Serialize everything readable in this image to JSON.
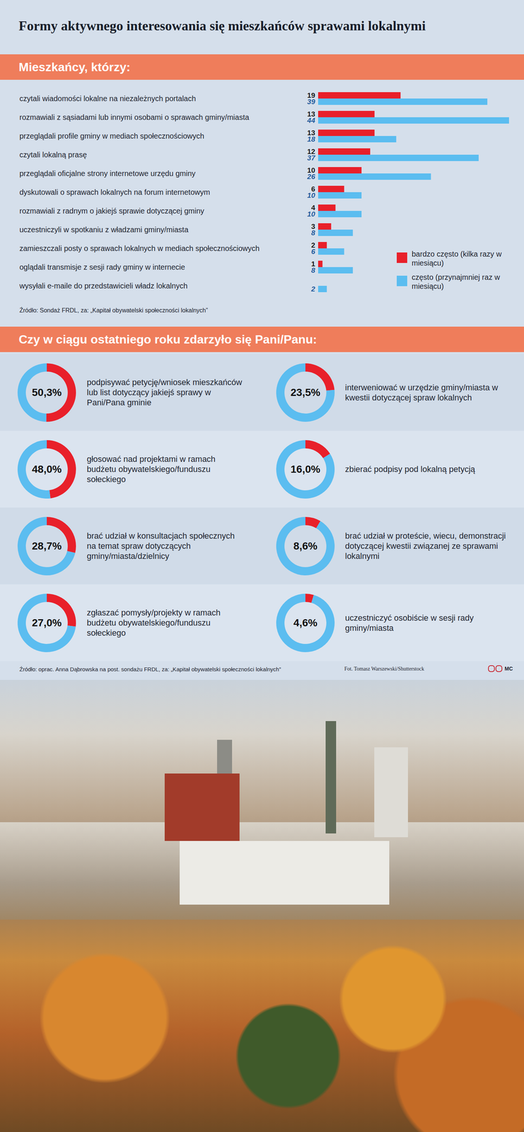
{
  "title": "Formy aktywnego interesowania się mieszkańców sprawami lokalnymi",
  "sections": [
    {
      "heading": "Mieszkańcy, którzy:",
      "source": "Źródło: Sondaż FRDL, za: „Kapitał obywatelski społeczności lokalnych”"
    },
    {
      "heading": "Czy w ciągu ostatniego roku zdarzyło się Pani/Panu:",
      "source": "Źródło: oprac. Anna Dąbrowska na post. sondażu FRDL, za: „Kapitał obywatelski społeczności lokalnych”"
    }
  ],
  "photo_credit": "Fot. Tomasz Warszewski/Shutterstock",
  "logo": "MC",
  "chart_data": [
    {
      "type": "bar",
      "orientation": "horizontal",
      "categories": [
        "czytali wiadomości lokalne na niezależnych portalach",
        "rozmawiali z sąsiadami lub innymi osobami o sprawach gminy/miasta",
        "przeglądali profile gminy w mediach społecznościowych",
        "czytali lokalną prasę",
        "przeglądali oficjalne strony internetowe urzędu gminy",
        "dyskutowali o sprawach lokalnych na forum internetowym",
        "rozmawiali z radnym o jakiejś sprawie dotyczącej gminy",
        "uczestniczyli w spotkaniu z władzami gminy/miasta",
        "zamieszczali posty o sprawach lokalnych w mediach społecznościowych",
        "oglądali transmisje z sesji rady gminy w internecie",
        "wysyłali e-maile do przedstawicieli władz lokalnych"
      ],
      "series": [
        {
          "name": "bardzo często (kilka razy w miesiącu)",
          "color": "#e8202a",
          "values": [
            19,
            13,
            13,
            12,
            10,
            6,
            4,
            3,
            2,
            1,
            0
          ]
        },
        {
          "name": "często (przynajmniej raz w miesiącu)",
          "color": "#5bbdf0",
          "values": [
            39,
            44,
            18,
            37,
            26,
            10,
            10,
            8,
            6,
            8,
            2
          ]
        }
      ],
      "data_labels": true,
      "tick_labels": "y",
      "legend": "lower right"
    },
    {
      "type": "pie",
      "categories": [
        "podpisywać petycję/wniosek mieszkańców lub list dotyczący jakiejś sprawy w Pani/Pana gminie",
        null
      ],
      "values": [
        50.3,
        49.7
      ],
      "value_labels": [
        "50,3%",
        null
      ],
      "colors": [
        "#e8202a",
        "#5bbdf0"
      ],
      "data_labels": true
    },
    {
      "type": "pie",
      "categories": [
        "interweniować w urzędzie gminy/miasta w kwestii dotyczącej spraw lokalnych",
        null
      ],
      "values": [
        23.5,
        76.5
      ],
      "value_labels": [
        "23,5%",
        null
      ],
      "colors": [
        "#e8202a",
        "#5bbdf0"
      ],
      "data_labels": true
    },
    {
      "type": "pie",
      "categories": [
        "głosować nad projektami w ramach budżetu obywatelskiego/funduszu sołeckiego",
        null
      ],
      "values": [
        48.0,
        52.0
      ],
      "value_labels": [
        "48,0%",
        null
      ],
      "colors": [
        "#e8202a",
        "#5bbdf0"
      ],
      "data_labels": true
    },
    {
      "type": "pie",
      "categories": [
        "zbierać podpisy pod lokalną petycją",
        null
      ],
      "values": [
        16.0,
        84.0
      ],
      "value_labels": [
        "16,0%",
        null
      ],
      "colors": [
        "#e8202a",
        "#5bbdf0"
      ],
      "data_labels": true
    },
    {
      "type": "pie",
      "categories": [
        "brać udział w konsultacjach społecznych na temat spraw dotyczących gminy/miasta/dzielnicy",
        null
      ],
      "values": [
        28.7,
        71.3
      ],
      "value_labels": [
        "28,7%",
        null
      ],
      "colors": [
        "#e8202a",
        "#5bbdf0"
      ],
      "data_labels": true
    },
    {
      "type": "pie",
      "categories": [
        "brać udział w proteście, wiecu, demonstracji dotyczącej kwestii związanej ze sprawami lokalnymi",
        null
      ],
      "values": [
        8.6,
        91.4
      ],
      "value_labels": [
        "8,6%",
        null
      ],
      "colors": [
        "#e8202a",
        "#5bbdf0"
      ],
      "data_labels": true
    },
    {
      "type": "pie",
      "categories": [
        "zgłaszać pomysły/projekty w ramach budżetu obywatelskiego/funduszu sołeckiego",
        null
      ],
      "values": [
        27.0,
        73.0
      ],
      "value_labels": [
        "27,0%",
        null
      ],
      "colors": [
        "#e8202a",
        "#5bbdf0"
      ],
      "data_labels": true
    },
    {
      "type": "pie",
      "categories": [
        "uczestniczyć osobiście w sesji rady gminy/miasta",
        null
      ],
      "values": [
        4.6,
        95.4
      ],
      "value_labels": [
        "4,6%",
        null
      ],
      "colors": [
        "#e8202a",
        "#5bbdf0"
      ],
      "data_labels": true
    }
  ]
}
